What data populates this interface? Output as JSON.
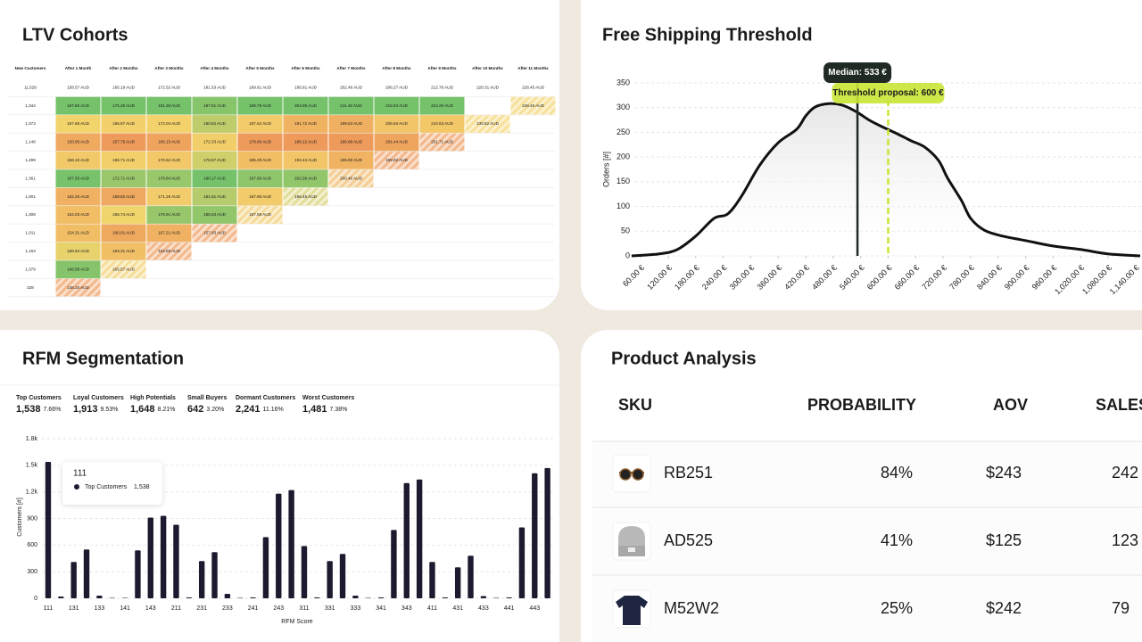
{
  "ltv_cohorts": {
    "title": "LTV Cohorts",
    "columns": [
      "New Customers",
      "After 1 Month",
      "After 2 Months",
      "After 3 Months",
      "After 4 Months",
      "After 5 Months",
      "After 6 Months",
      "After 7 Months",
      "After 8 Months",
      "After 9 Months",
      "After 10 Months",
      "After 11 Months"
    ],
    "average": {
      "customers": "11,529",
      "cells": [
        "158.57 AUD",
        "165.19 AUD",
        "172.52 AUD",
        "181.53 AUD",
        "189.81 AUD",
        "195.81 AUD",
        "202.46 AUD",
        "206.27 AUD",
        "212.76 AUD",
        "220.31 AUD",
        "228.45 AUD"
      ]
    },
    "rows": [
      {
        "customers": "1,344",
        "cells": [
          "167.80 AUD",
          "175.25 AUD",
          "181.38 AUD",
          "187.81 AUD",
          "199.79 AUD",
          "204.85 AUD",
          "211.49 AUD",
          "215.94 AUD",
          "224.20 AUD",
          null,
          "228.45 AUD"
        ]
      },
      {
        "customers": "1,073",
        "cells": [
          "157.85 AUD",
          "165.97 AUD",
          "172.04 AUD",
          "180.82 AUD",
          "187.62 AUD",
          "191.72 AUD",
          "199.53 AUD",
          "205.94 AUD",
          "210.53 AUD",
          "230.82 AUD"
        ]
      },
      {
        "customers": "1,148",
        "cells": [
          "150.95 AUD",
          "157.75 AUD",
          "165.13 AUD",
          "172.33 AUD",
          "178.96 AUD",
          "188.12 AUD",
          "196.68 AUD",
          "201.44 AUD",
          "201.71 AUD"
        ]
      },
      {
        "customers": "1,299",
        "cells": [
          "156.15 AUD",
          "165.71 AUD",
          "170.62 AUD",
          "178.67 AUD",
          "185.29 AUD",
          "194.44 AUD",
          "199.90 AUD",
          "199.92 AUD"
        ]
      },
      {
        "customers": "1,361",
        "cells": [
          "167.55 AUD",
          "172.71 AUD",
          "178.84 AUD",
          "190.17 AUD",
          "197.66 AUD",
          "202.96 AUD",
          "200.46 AUD"
        ]
      },
      {
        "customers": "1,001",
        "cells": [
          "152.26 AUD",
          "159.82 AUD",
          "171.29 AUD",
          "181.81 AUD",
          "187.96 AUD",
          "198.45 AUD"
        ]
      },
      {
        "customers": "1,308",
        "cells": [
          "154.03 AUD",
          "166.74 AUD",
          "178.91 AUD",
          "186.63 AUD",
          "187.58 AUD"
        ]
      },
      {
        "customers": "1,011",
        "cells": [
          "154.31 AUD",
          "160.01 AUD",
          "167.21 AUD",
          "157.93 AUD"
        ]
      },
      {
        "customers": "1,163",
        "cells": [
          "158.84 AUD",
          "163.31 AUD",
          "163.59 AUD"
        ]
      },
      {
        "customers": "1,379",
        "cells": [
          "166.58 AUD",
          "165.57 AUD"
        ]
      },
      {
        "customers": "328",
        "cells": [
          "148.20 AUD"
        ]
      }
    ],
    "color_scale": [
      "#ee9a5b",
      "#f3d46c",
      "#75c26b"
    ]
  },
  "chart_data": [
    {
      "type": "line",
      "title": "Free Shipping Threshold",
      "y_label": "Orders [#]",
      "color": "#111111",
      "x": [
        40,
        100,
        140,
        180,
        220,
        250,
        280,
        320,
        360,
        400,
        420,
        440,
        470,
        500,
        530,
        560,
        590,
        620,
        650,
        680,
        710,
        730,
        760,
        780,
        810,
        850,
        900,
        960,
        1020,
        1080,
        1150
      ],
      "values": [
        0,
        4,
        13,
        40,
        76,
        85,
        121,
        184,
        229,
        256,
        283,
        301,
        308,
        305,
        292,
        274,
        260,
        247,
        233,
        220,
        193,
        157,
        112,
        76,
        52,
        40,
        31,
        20,
        13,
        4,
        0
      ],
      "xlim": [
        48,
        1154
      ],
      "ylim": [
        0,
        350
      ],
      "xticks": [
        {
          "value": 60,
          "label": "60.00 €"
        },
        {
          "value": 120,
          "label": "120.00 €"
        },
        {
          "value": 180,
          "label": "180.00 €"
        },
        {
          "value": 240,
          "label": "240.00 €"
        },
        {
          "value": 300,
          "label": "300.00 €"
        },
        {
          "value": 360,
          "label": "360.00 €"
        },
        {
          "value": 420,
          "label": "420.00 €"
        },
        {
          "value": 480,
          "label": "480.00 €"
        },
        {
          "value": 540,
          "label": "540.00 €"
        },
        {
          "value": 600,
          "label": "600.00 €"
        },
        {
          "value": 660,
          "label": "660.00 €"
        },
        {
          "value": 720,
          "label": "720.00 €"
        },
        {
          "value": 780,
          "label": "780.00 €"
        },
        {
          "value": 840,
          "label": "840.00 €"
        },
        {
          "value": 900,
          "label": "900.00 €"
        },
        {
          "value": 960,
          "label": "960.00 €"
        },
        {
          "value": 1020,
          "label": "1,020.00 €"
        },
        {
          "value": 1080,
          "label": "1,080.00 €"
        },
        {
          "value": 1140,
          "label": "1,140.00 €"
        }
      ],
      "yticks": [
        0,
        50,
        100,
        150,
        200,
        250,
        300,
        350
      ],
      "grid": true,
      "median": {
        "value": 533,
        "label": "Median: 533 €",
        "color": "#1f2a24"
      },
      "threshold": {
        "value": 600,
        "label": "Threshold proposal: 600 €",
        "color": "#c9e536"
      }
    },
    {
      "type": "bar",
      "title": "RFM Segmentation",
      "x_label": "RFM Score",
      "y_label": "Customers [#]",
      "color": "#1c1a2e",
      "segments": [
        {
          "name": "Top Customers",
          "count": "1,538",
          "share": "7.66%"
        },
        {
          "name": "Loyal Customers",
          "count": "1,913",
          "share": "9.53%"
        },
        {
          "name": "High Potentials",
          "count": "1,648",
          "share": "8.21%"
        },
        {
          "name": "Small Buyers",
          "count": "642",
          "share": "3.20%"
        },
        {
          "name": "Dormant Customers",
          "count": "2,241",
          "share": "11.16%"
        },
        {
          "name": "Worst Customers",
          "count": "1,481",
          "share": "7.38%"
        }
      ],
      "categories": [
        "111",
        null,
        "131",
        null,
        "133",
        null,
        "141",
        null,
        "143",
        null,
        "211",
        null,
        "231",
        null,
        "233",
        null,
        "241",
        null,
        "243",
        null,
        "311",
        null,
        "331",
        null,
        "333",
        null,
        "341",
        null,
        "343",
        null,
        "411",
        null,
        "431",
        null,
        "433",
        null,
        "441",
        null,
        "443",
        null
      ],
      "values": [
        1538,
        20,
        410,
        550,
        30,
        5,
        5,
        540,
        910,
        930,
        830,
        10,
        420,
        520,
        50,
        5,
        10,
        690,
        1180,
        1220,
        590,
        10,
        420,
        500,
        30,
        5,
        10,
        770,
        1300,
        1340,
        410,
        10,
        350,
        480,
        25,
        5,
        10,
        800,
        1410,
        1470
      ],
      "ylim": [
        0,
        1800
      ],
      "yticks": [
        0,
        300,
        600,
        900,
        {
          "value": 1200,
          "label": "1.2k"
        },
        {
          "value": 1500,
          "label": "1.5k"
        },
        {
          "value": 1800,
          "label": "1.8k"
        }
      ],
      "grid": true
    }
  ],
  "product_analysis": {
    "title": "Product Analysis",
    "columns": [
      "SKU",
      "PROBABILITY",
      "AOV",
      "SALES"
    ],
    "rows": [
      [
        "RB251",
        "84%",
        "$243",
        "242"
      ],
      [
        "AD525",
        "41%",
        "$125",
        "123"
      ],
      [
        "M52W2",
        "25%",
        "$242",
        "79"
      ]
    ]
  }
}
